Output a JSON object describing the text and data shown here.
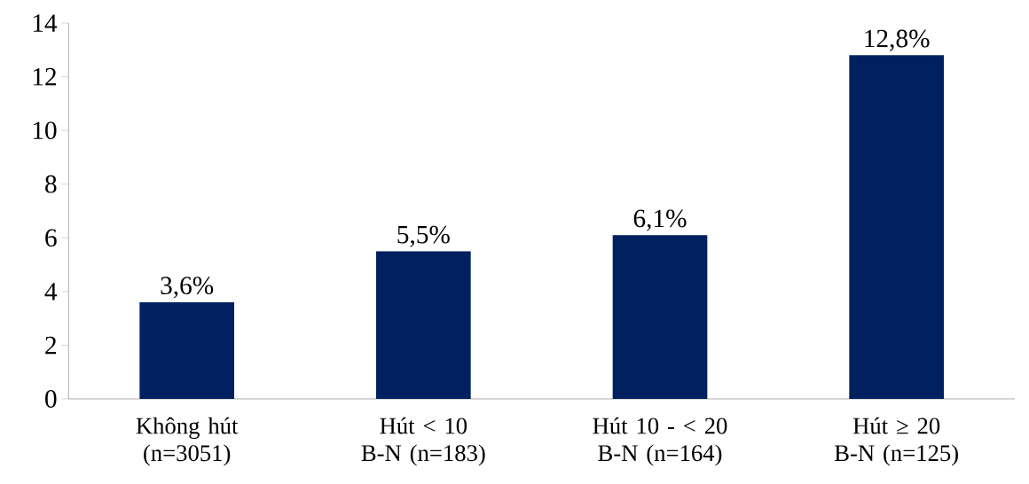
{
  "chart_data": {
    "type": "bar",
    "categories": [
      "Không hút (n=3051)",
      "Hút < 10 B-N (n=183)",
      "Hút 10 - < 20 B-N (n=164)",
      "Hút ≥ 20 B-N (n=125)"
    ],
    "values": [
      3.6,
      5.5,
      6.1,
      12.8
    ],
    "value_labels": [
      "3,6%",
      "5,5%",
      "6,1%",
      "12,8%"
    ],
    "color": "#002060",
    "ylim": [
      0,
      14
    ],
    "yticks": [
      0,
      2,
      4,
      6,
      8,
      10,
      12,
      14
    ],
    "grid": false
  }
}
